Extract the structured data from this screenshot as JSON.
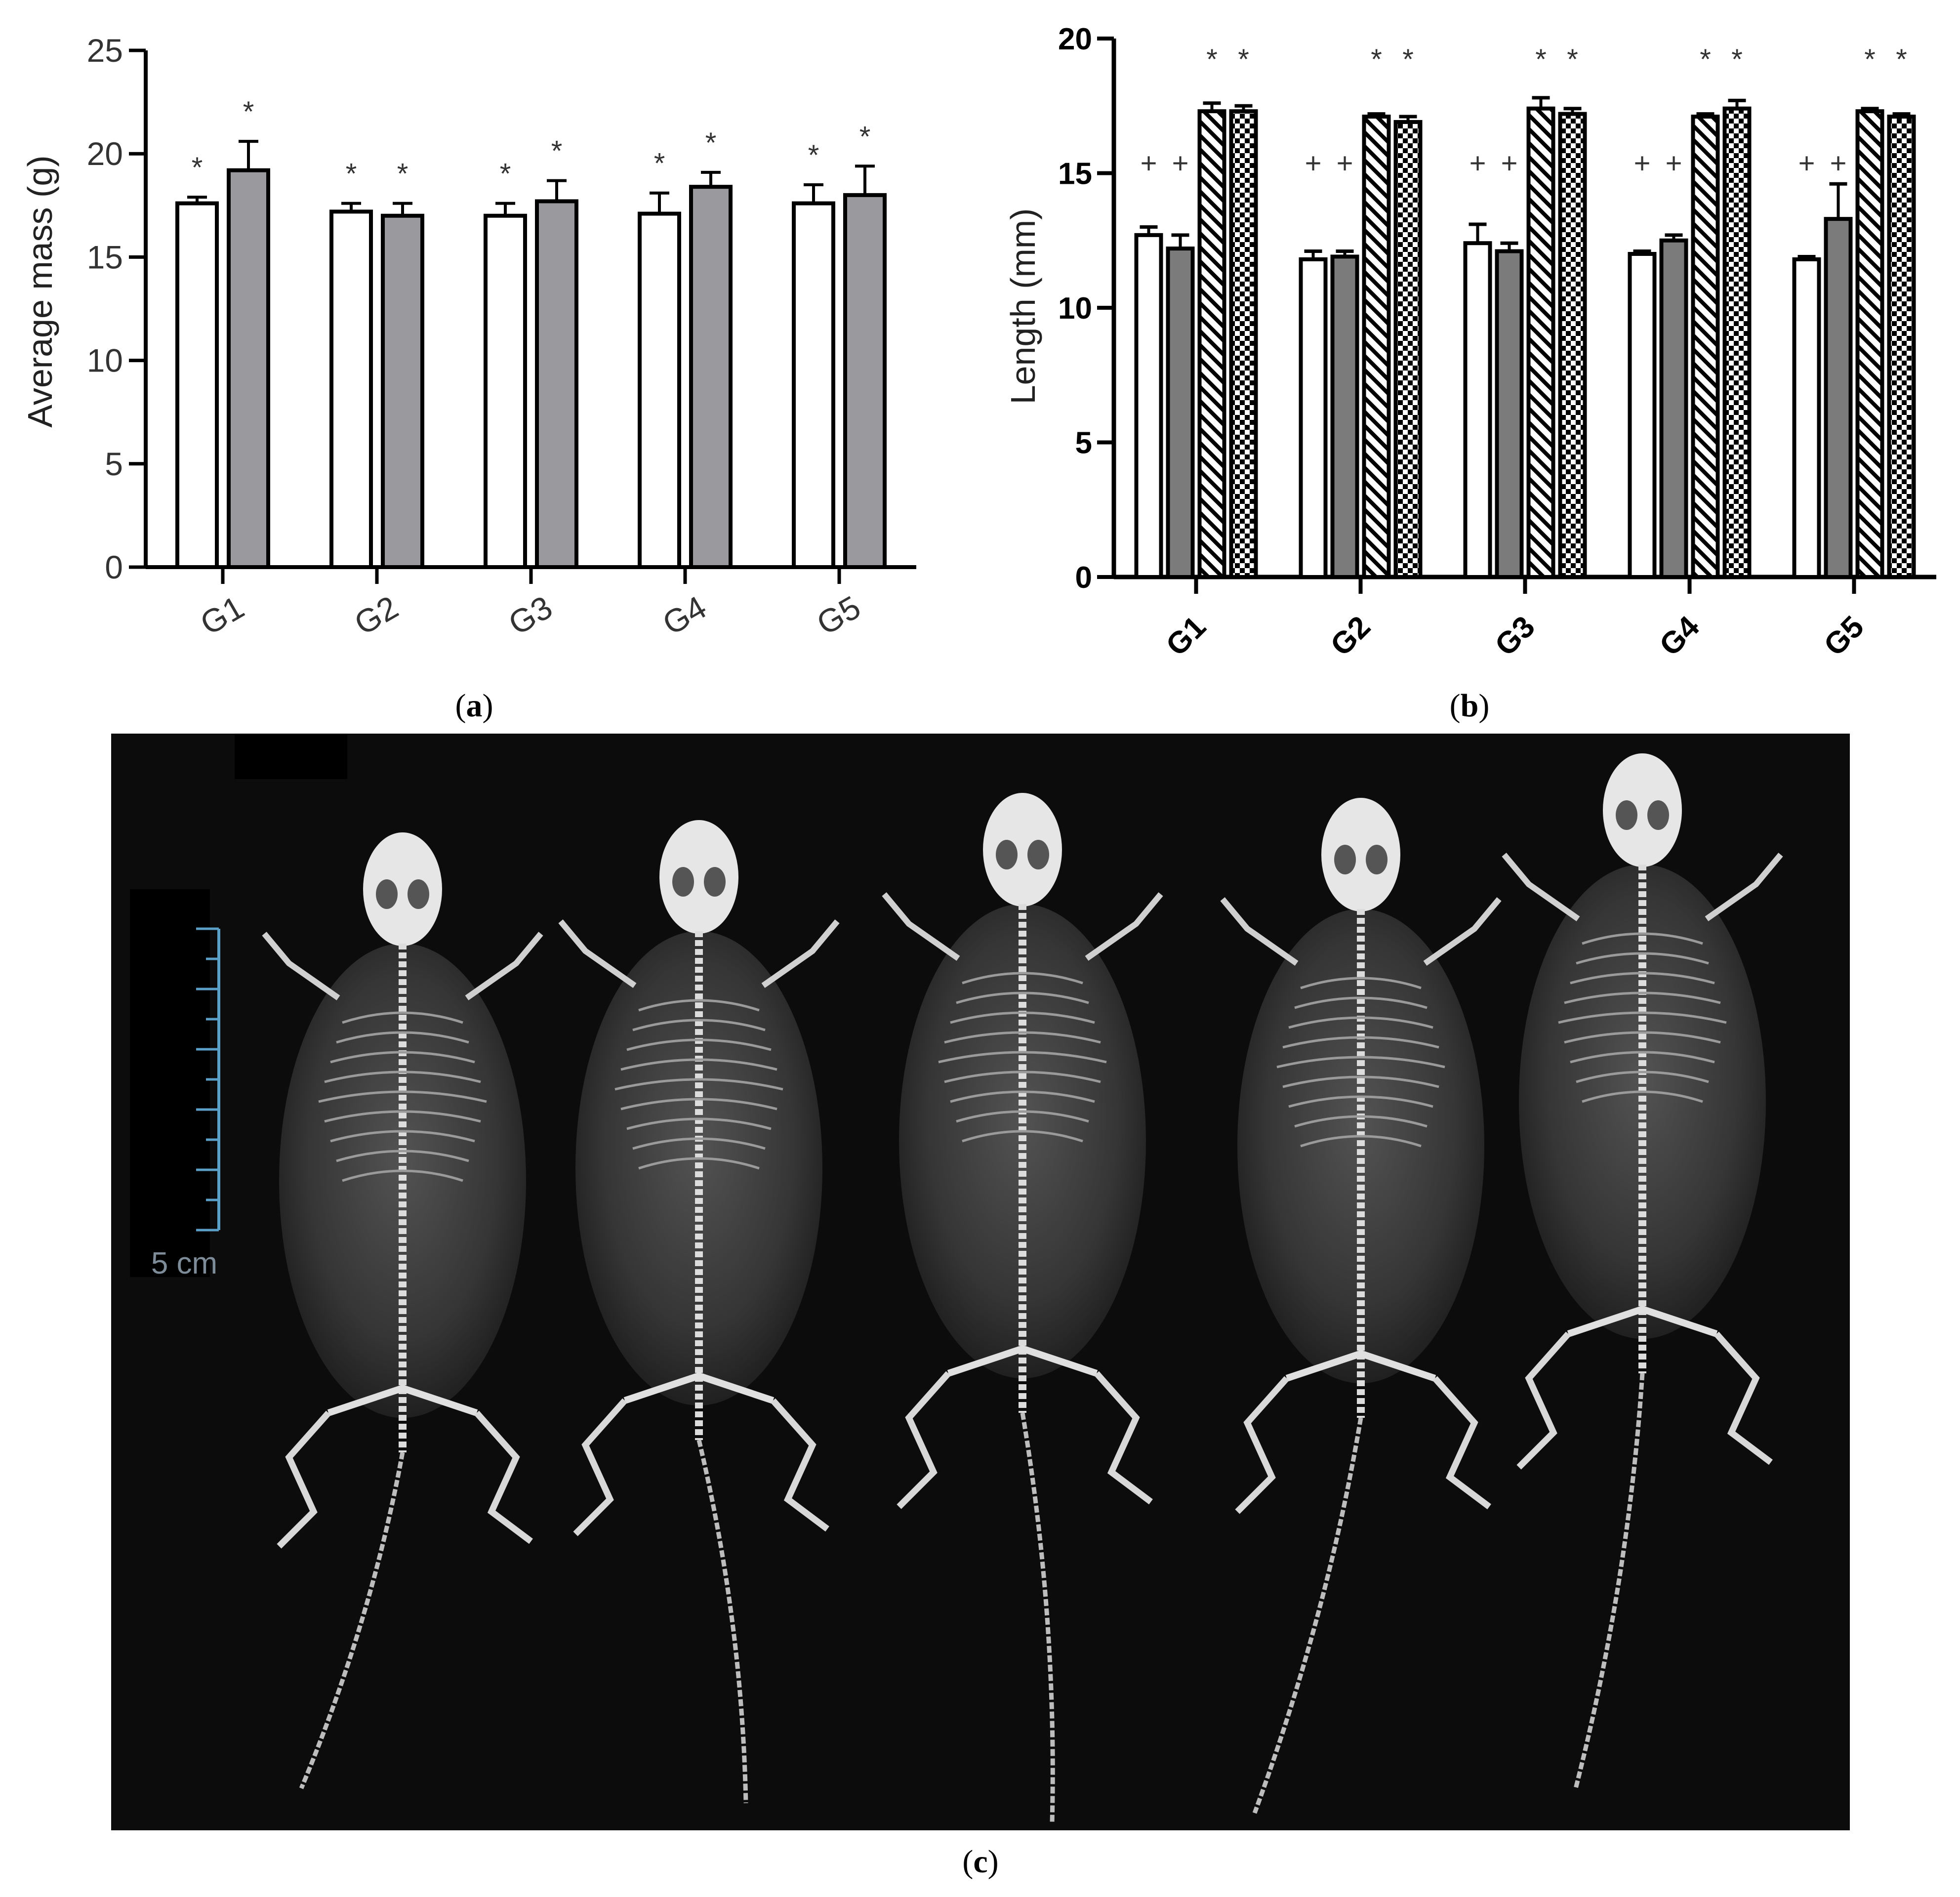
{
  "chart_data": [
    {
      "type": "bar",
      "panel_label": "a",
      "categories": [
        "G1",
        "G2",
        "G3",
        "G4",
        "G5"
      ],
      "ylabel": "Average mass (g)",
      "xlabel": "",
      "ylim": [
        0,
        25
      ],
      "yticks": [
        0,
        5,
        10,
        15,
        20,
        25
      ],
      "grid": false,
      "series": [
        {
          "values": [
            17.6,
            17.2,
            17.0,
            17.1,
            17.6
          ],
          "errors": [
            0.3,
            0.4,
            0.6,
            1.0,
            0.9
          ],
          "fill": "#ffffff",
          "pattern": "solid"
        },
        {
          "values": [
            19.2,
            17.0,
            17.7,
            18.4,
            18.0
          ],
          "errors": [
            1.4,
            0.6,
            1.0,
            0.7,
            1.4
          ],
          "fill": "#9a9a9e",
          "pattern": "solid"
        }
      ],
      "annotations": {
        "symbol": "*",
        "marks": [
          [
            "*",
            "*"
          ],
          [
            "*",
            "*"
          ],
          [
            "*",
            "*"
          ],
          [
            "*",
            "*"
          ],
          [
            "*",
            "*"
          ]
        ]
      }
    },
    {
      "type": "bar",
      "panel_label": "b",
      "categories": [
        "G1",
        "G2",
        "G3",
        "G4",
        "G5"
      ],
      "ylabel": "Length (mm)",
      "xlabel": "",
      "ylim": [
        0,
        20
      ],
      "yticks": [
        0,
        5,
        10,
        15,
        20
      ],
      "grid": false,
      "series": [
        {
          "values": [
            12.7,
            11.8,
            12.4,
            12.0,
            11.8
          ],
          "errors": [
            0.3,
            0.3,
            0.7,
            0.1,
            0.1
          ],
          "fill": "#ffffff",
          "pattern": "solid"
        },
        {
          "values": [
            12.2,
            11.9,
            12.1,
            12.5,
            13.3
          ],
          "errors": [
            0.5,
            0.2,
            0.3,
            0.2,
            1.3
          ],
          "fill": "#7b7b7b",
          "pattern": "solid"
        },
        {
          "values": [
            17.3,
            17.1,
            17.4,
            17.1,
            17.3
          ],
          "errors": [
            0.3,
            0.1,
            0.4,
            0.1,
            0.1
          ],
          "fill": "#ffffff",
          "pattern": "diagonal"
        },
        {
          "values": [
            17.3,
            16.9,
            17.2,
            17.4,
            17.1
          ],
          "errors": [
            0.2,
            0.2,
            0.2,
            0.3,
            0.1
          ],
          "fill": "#ffffff",
          "pattern": "checker"
        }
      ],
      "annotations": {
        "plus_marks": [
          [
            "+",
            "+"
          ],
          [
            "+",
            "+"
          ],
          [
            "+",
            "+"
          ],
          [
            "+",
            "+"
          ],
          [
            "+",
            "+"
          ]
        ],
        "star_marks": [
          [
            "*",
            "*"
          ],
          [
            "*",
            "*"
          ],
          [
            "*",
            "*"
          ],
          [
            "*",
            "*"
          ],
          [
            "*",
            "*"
          ]
        ]
      }
    }
  ],
  "panel_c": {
    "panel_label": "c",
    "content": "x-ray-photo",
    "scale_label": "5 cm"
  },
  "colors": {
    "axis": "#000000",
    "bar_gray_a": "#9a9a9e",
    "bar_gray_b": "#7b7b7b",
    "photo_bg": "#0c0c0c",
    "scale_tick": "#5aa0c8"
  }
}
